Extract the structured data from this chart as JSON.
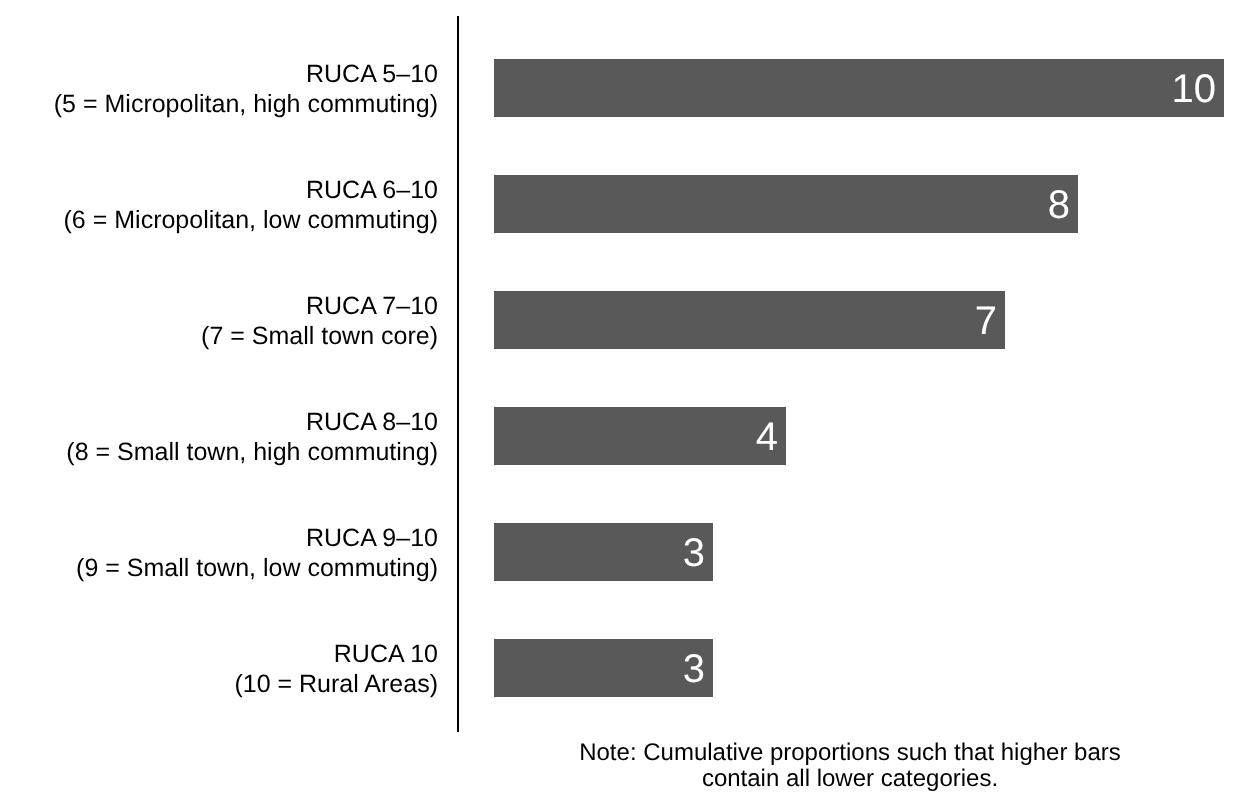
{
  "chart_data": {
    "type": "bar",
    "orientation": "horizontal",
    "categories": [
      "RUCA 5–10\n(5 = Micropolitan, high commuting)",
      "RUCA 6–10\n(6 = Micropolitan, low commuting)",
      "RUCA 7–10\n(7 = Small town core)",
      "RUCA 8–10\n(8 = Small town, high commuting)",
      "RUCA 9–10\n(9 = Small town, low commuting)",
      "RUCA 10\n(10 = Rural Areas)"
    ],
    "values": [
      10,
      8,
      7,
      4,
      3,
      3
    ],
    "color": "#595959",
    "data_labels": true,
    "annotations": [
      "Note: Cumulative proportions such that higher bars contain all lower categories."
    ]
  }
}
